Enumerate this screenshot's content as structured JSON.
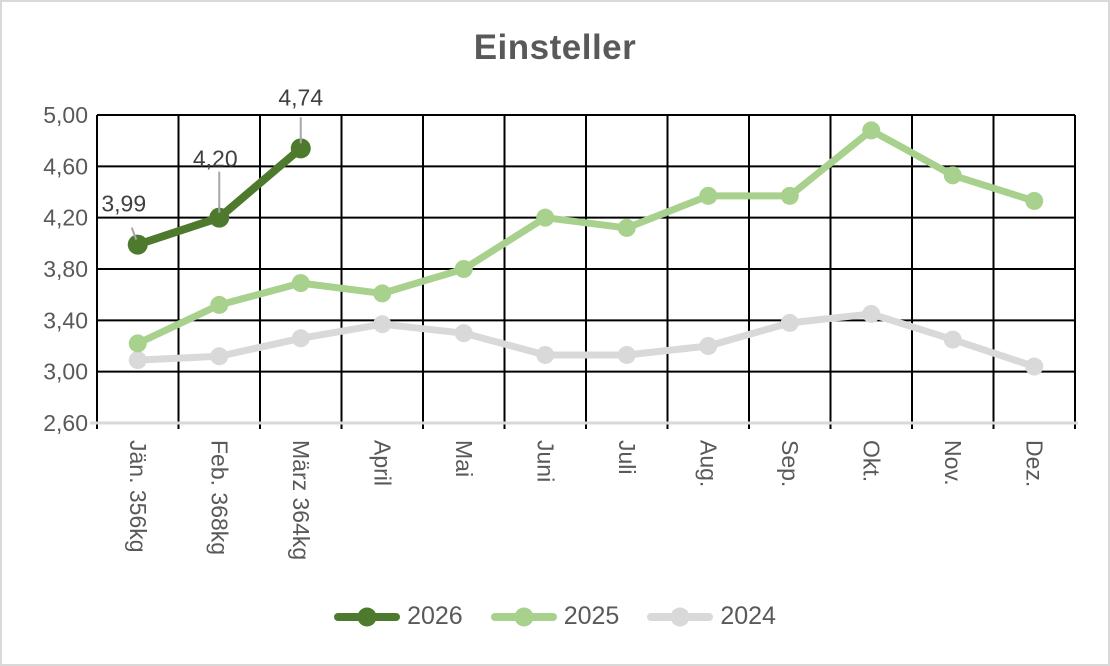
{
  "chart_data": {
    "type": "line",
    "title": "Einsteller",
    "categories": [
      "Jän.  356kg",
      "Feb.  368kg",
      "März 364kg",
      "April",
      "Mai",
      "Juni",
      "Juli",
      "Aug.",
      "Sep.",
      "Okt.",
      "Nov.",
      "Dez."
    ],
    "y_axis": {
      "min": 2.6,
      "max": 5.0,
      "step": 0.4,
      "tick_labels": [
        "5,00",
        "4,60",
        "4,20",
        "3,80",
        "3,40",
        "3,00",
        "2,60"
      ]
    },
    "grid": true,
    "legend_position": "bottom",
    "series": [
      {
        "name": "2026",
        "color": "#4e7a2d",
        "values": [
          3.99,
          4.2,
          4.74
        ],
        "data_labels": [
          "3,99",
          "4,20",
          "4,74"
        ]
      },
      {
        "name": "2025",
        "color": "#a9d18e",
        "values": [
          3.22,
          3.52,
          3.69,
          3.61,
          3.8,
          4.2,
          4.12,
          4.37,
          4.37,
          4.88,
          4.53,
          4.33
        ]
      },
      {
        "name": "2024",
        "color": "#d9d9d9",
        "values": [
          3.09,
          3.12,
          3.26,
          3.37,
          3.3,
          3.13,
          3.13,
          3.2,
          3.38,
          3.45,
          3.25,
          3.04
        ]
      }
    ],
    "colors": {
      "gridline": "#000000",
      "axis_line": "#d9d9d9",
      "axis_text": "#595959",
      "data_label_text": "#404040",
      "leader_line": "#a6a6a6",
      "title_text": "#595959",
      "frame_border": "#d9d9d9"
    }
  }
}
